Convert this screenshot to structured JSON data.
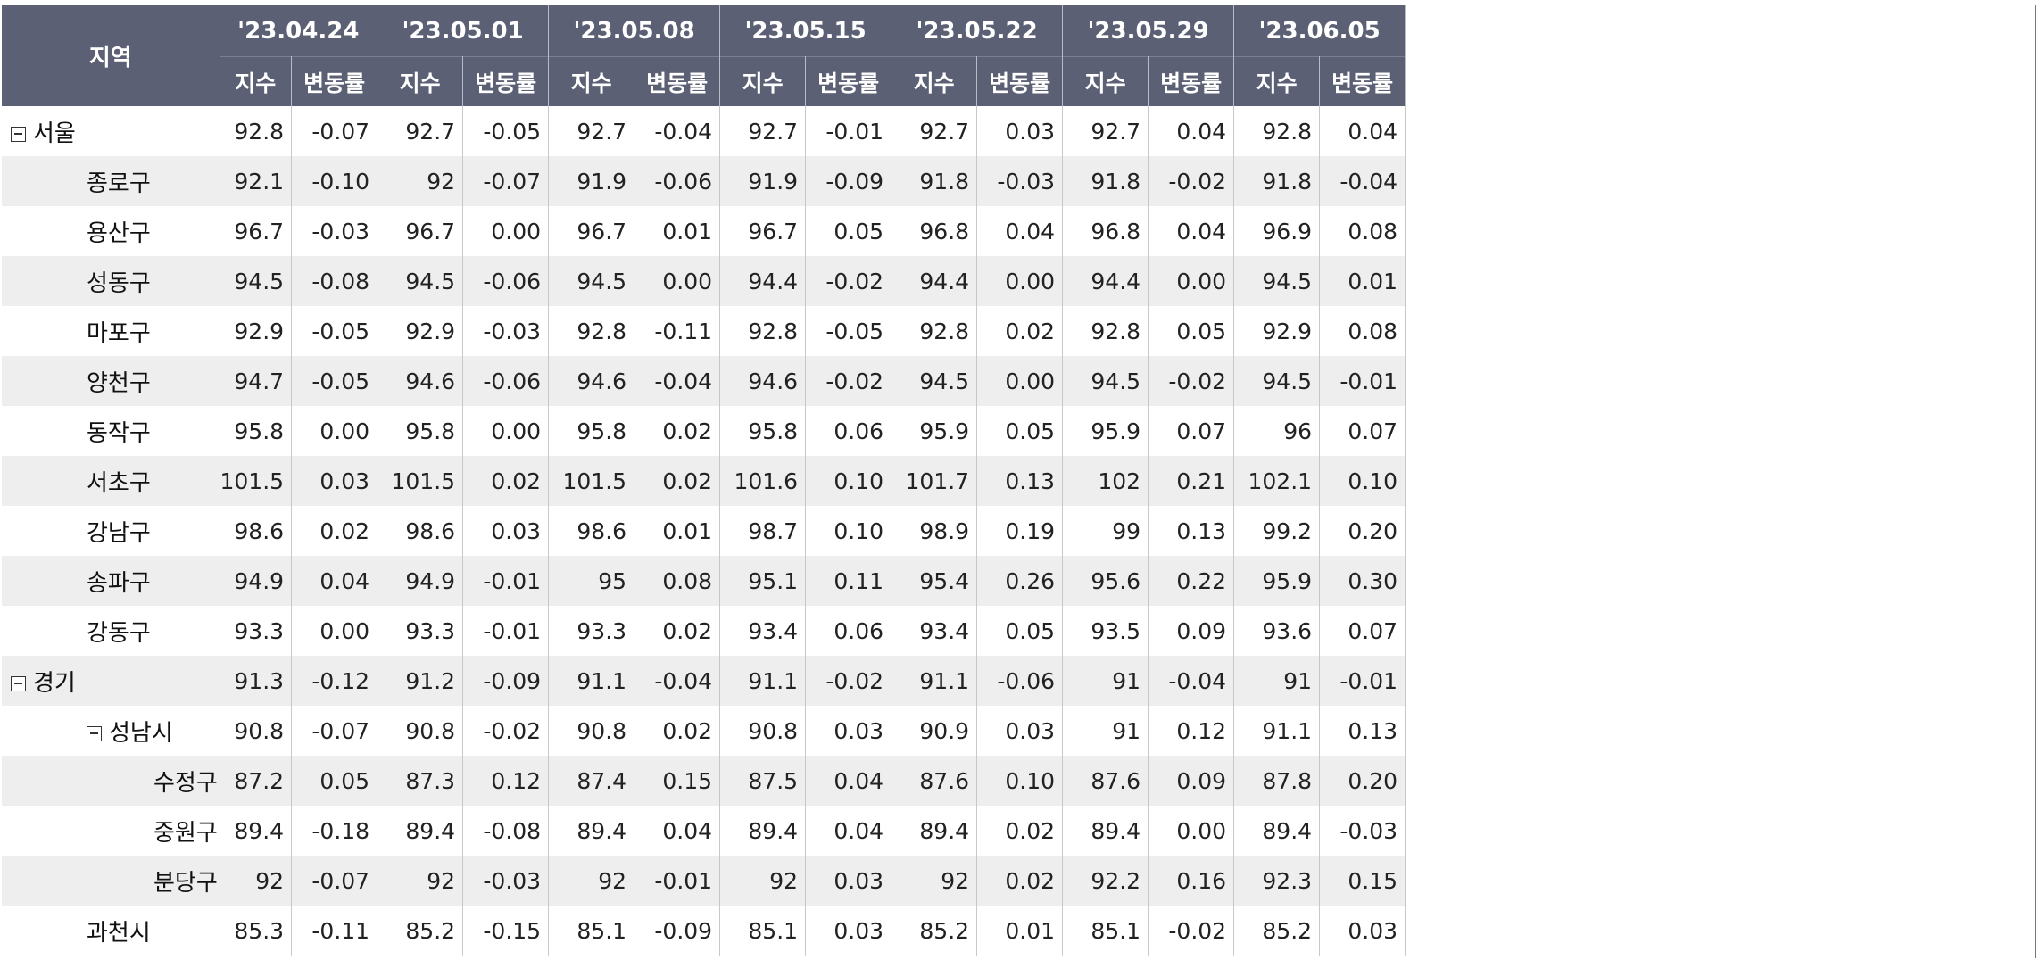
{
  "header": {
    "region_label": "지역",
    "index_label": "지수",
    "change_label": "변동률",
    "dates": [
      "'23.04.24",
      "'23.05.01",
      "'23.05.08",
      "'23.05.15",
      "'23.05.22",
      "'23.05.29",
      "'23.06.05"
    ]
  },
  "colors": {
    "header_bg": "#5c6075",
    "negative": "#1a1aff",
    "positive": "#ee0000",
    "zero": "#8a8a8a",
    "alt_row": "#eeeeee"
  },
  "rows": [
    {
      "name": "서울",
      "level": 0,
      "collapsible": true,
      "values": [
        [
          "92.8",
          "-0.07"
        ],
        [
          "92.7",
          "-0.05"
        ],
        [
          "92.7",
          "-0.04"
        ],
        [
          "92.7",
          "-0.01"
        ],
        [
          "92.7",
          "0.03"
        ],
        [
          "92.7",
          "0.04"
        ],
        [
          "92.8",
          "0.04"
        ]
      ]
    },
    {
      "name": "종로구",
      "level": 1,
      "collapsible": false,
      "values": [
        [
          "92.1",
          "-0.10"
        ],
        [
          "92",
          "-0.07"
        ],
        [
          "91.9",
          "-0.06"
        ],
        [
          "91.9",
          "-0.09"
        ],
        [
          "91.8",
          "-0.03"
        ],
        [
          "91.8",
          "-0.02"
        ],
        [
          "91.8",
          "-0.04"
        ]
      ]
    },
    {
      "name": "용산구",
      "level": 1,
      "collapsible": false,
      "values": [
        [
          "96.7",
          "-0.03"
        ],
        [
          "96.7",
          "0.00"
        ],
        [
          "96.7",
          "0.01"
        ],
        [
          "96.7",
          "0.05"
        ],
        [
          "96.8",
          "0.04"
        ],
        [
          "96.8",
          "0.04"
        ],
        [
          "96.9",
          "0.08"
        ]
      ]
    },
    {
      "name": "성동구",
      "level": 1,
      "collapsible": false,
      "values": [
        [
          "94.5",
          "-0.08"
        ],
        [
          "94.5",
          "-0.06"
        ],
        [
          "94.5",
          "0.00"
        ],
        [
          "94.4",
          "-0.02"
        ],
        [
          "94.4",
          "0.00"
        ],
        [
          "94.4",
          "0.00"
        ],
        [
          "94.5",
          "0.01"
        ]
      ]
    },
    {
      "name": "마포구",
      "level": 1,
      "collapsible": false,
      "values": [
        [
          "92.9",
          "-0.05"
        ],
        [
          "92.9",
          "-0.03"
        ],
        [
          "92.8",
          "-0.11"
        ],
        [
          "92.8",
          "-0.05"
        ],
        [
          "92.8",
          "0.02"
        ],
        [
          "92.8",
          "0.05"
        ],
        [
          "92.9",
          "0.08"
        ]
      ]
    },
    {
      "name": "양천구",
      "level": 1,
      "collapsible": false,
      "values": [
        [
          "94.7",
          "-0.05"
        ],
        [
          "94.6",
          "-0.06"
        ],
        [
          "94.6",
          "-0.04"
        ],
        [
          "94.6",
          "-0.02"
        ],
        [
          "94.5",
          "0.00"
        ],
        [
          "94.5",
          "-0.02"
        ],
        [
          "94.5",
          "-0.01"
        ]
      ]
    },
    {
      "name": "동작구",
      "level": 1,
      "collapsible": false,
      "values": [
        [
          "95.8",
          "0.00"
        ],
        [
          "95.8",
          "0.00"
        ],
        [
          "95.8",
          "0.02"
        ],
        [
          "95.8",
          "0.06"
        ],
        [
          "95.9",
          "0.05"
        ],
        [
          "95.9",
          "0.07"
        ],
        [
          "96",
          "0.07"
        ]
      ]
    },
    {
      "name": "서초구",
      "level": 1,
      "collapsible": false,
      "values": [
        [
          "101.5",
          "0.03"
        ],
        [
          "101.5",
          "0.02"
        ],
        [
          "101.5",
          "0.02"
        ],
        [
          "101.6",
          "0.10"
        ],
        [
          "101.7",
          "0.13"
        ],
        [
          "102",
          "0.21"
        ],
        [
          "102.1",
          "0.10"
        ]
      ]
    },
    {
      "name": "강남구",
      "level": 1,
      "collapsible": false,
      "values": [
        [
          "98.6",
          "0.02"
        ],
        [
          "98.6",
          "0.03"
        ],
        [
          "98.6",
          "0.01"
        ],
        [
          "98.7",
          "0.10"
        ],
        [
          "98.9",
          "0.19"
        ],
        [
          "99",
          "0.13"
        ],
        [
          "99.2",
          "0.20"
        ]
      ]
    },
    {
      "name": "송파구",
      "level": 1,
      "collapsible": false,
      "values": [
        [
          "94.9",
          "0.04"
        ],
        [
          "94.9",
          "-0.01"
        ],
        [
          "95",
          "0.08"
        ],
        [
          "95.1",
          "0.11"
        ],
        [
          "95.4",
          "0.26"
        ],
        [
          "95.6",
          "0.22"
        ],
        [
          "95.9",
          "0.30"
        ]
      ]
    },
    {
      "name": "강동구",
      "level": 1,
      "collapsible": false,
      "values": [
        [
          "93.3",
          "0.00"
        ],
        [
          "93.3",
          "-0.01"
        ],
        [
          "93.3",
          "0.02"
        ],
        [
          "93.4",
          "0.06"
        ],
        [
          "93.4",
          "0.05"
        ],
        [
          "93.5",
          "0.09"
        ],
        [
          "93.6",
          "0.07"
        ]
      ]
    },
    {
      "name": "경기",
      "level": 0,
      "collapsible": true,
      "values": [
        [
          "91.3",
          "-0.12"
        ],
        [
          "91.2",
          "-0.09"
        ],
        [
          "91.1",
          "-0.04"
        ],
        [
          "91.1",
          "-0.02"
        ],
        [
          "91.1",
          "-0.06"
        ],
        [
          "91",
          "-0.04"
        ],
        [
          "91",
          "-0.01"
        ]
      ]
    },
    {
      "name": "성남시",
      "level": 1,
      "collapsible": true,
      "values": [
        [
          "90.8",
          "-0.07"
        ],
        [
          "90.8",
          "-0.02"
        ],
        [
          "90.8",
          "0.02"
        ],
        [
          "90.8",
          "0.03"
        ],
        [
          "90.9",
          "0.03"
        ],
        [
          "91",
          "0.12"
        ],
        [
          "91.1",
          "0.13"
        ]
      ]
    },
    {
      "name": "수정구",
      "level": 2,
      "collapsible": false,
      "values": [
        [
          "87.2",
          "0.05"
        ],
        [
          "87.3",
          "0.12"
        ],
        [
          "87.4",
          "0.15"
        ],
        [
          "87.5",
          "0.04"
        ],
        [
          "87.6",
          "0.10"
        ],
        [
          "87.6",
          "0.09"
        ],
        [
          "87.8",
          "0.20"
        ]
      ]
    },
    {
      "name": "중원구",
      "level": 2,
      "collapsible": false,
      "values": [
        [
          "89.4",
          "-0.18"
        ],
        [
          "89.4",
          "-0.08"
        ],
        [
          "89.4",
          "0.04"
        ],
        [
          "89.4",
          "0.04"
        ],
        [
          "89.4",
          "0.02"
        ],
        [
          "89.4",
          "0.00"
        ],
        [
          "89.4",
          "-0.03"
        ]
      ]
    },
    {
      "name": "분당구",
      "level": 2,
      "collapsible": false,
      "values": [
        [
          "92",
          "-0.07"
        ],
        [
          "92",
          "-0.03"
        ],
        [
          "92",
          "-0.01"
        ],
        [
          "92",
          "0.03"
        ],
        [
          "92",
          "0.02"
        ],
        [
          "92.2",
          "0.16"
        ],
        [
          "92.3",
          "0.15"
        ]
      ]
    },
    {
      "name": "과천시",
      "level": 1,
      "collapsible": false,
      "values": [
        [
          "85.3",
          "-0.11"
        ],
        [
          "85.2",
          "-0.15"
        ],
        [
          "85.1",
          "-0.09"
        ],
        [
          "85.1",
          "0.03"
        ],
        [
          "85.2",
          "0.01"
        ],
        [
          "85.1",
          "-0.02"
        ],
        [
          "85.2",
          "0.03"
        ]
      ]
    }
  ]
}
